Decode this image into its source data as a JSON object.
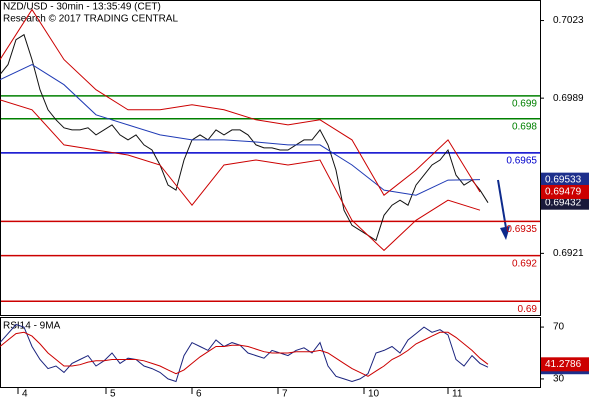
{
  "chart_data": [
    {
      "type": "line",
      "title": "NZD/USD - 30min - 13:35:49 (CET)",
      "subtitle": "Research © 2017 TRADING CENTRAL",
      "xlim": [
        0,
        67.5
      ],
      "xticks": [
        {
          "value": 2.75,
          "label": "4"
        },
        {
          "value": 13.75,
          "label": "5"
        },
        {
          "value": 24.5,
          "label": "6"
        },
        {
          "value": 35.25,
          "label": "7"
        },
        {
          "value": 46,
          "label": "10"
        },
        {
          "value": 56.5,
          "label": "11"
        }
      ],
      "ylim": [
        0.6894,
        0.7032
      ],
      "yticks": [
        0.7023,
        0.6989,
        0.6921
      ],
      "levels": [
        {
          "value": 0.699,
          "color": "#008000"
        },
        {
          "value": 0.698,
          "color": "#008000"
        },
        {
          "value": 0.6965,
          "color": "#0000cc"
        },
        {
          "value": 0.6935,
          "color": "#cc0000"
        },
        {
          "value": 0.692,
          "color": "#cc0000"
        },
        {
          "value": 0.69,
          "color": "#cc0000"
        }
      ],
      "series": [
        {
          "name": "NZD/USD",
          "color": "#111111",
          "box": "#1a1a3a",
          "values": [
            0.69993,
            0.70037,
            0.70146,
            0.70168,
            0.70059,
            0.69927,
            0.69839,
            0.69795,
            0.6976,
            0.69751,
            0.69751,
            0.6976,
            0.69729,
            0.69751,
            0.69773,
            0.69729,
            0.69707,
            0.69729,
            0.69685,
            0.69663,
            0.69597,
            0.69509,
            0.69487,
            0.69619,
            0.69707,
            0.69729,
            0.69707,
            0.69751,
            0.69729,
            0.69751,
            0.69751,
            0.69729,
            0.69685,
            0.69672,
            0.69672,
            0.69663,
            0.69663,
            0.69685,
            0.69707,
            0.69707,
            0.69751,
            0.69685,
            0.69575,
            0.69399,
            0.69333,
            0.69311,
            0.69289,
            0.69267,
            0.69377,
            0.69421,
            0.69443,
            0.69421,
            0.69509,
            0.69553,
            0.69597,
            0.69619,
            0.69663,
            0.69553,
            0.69509,
            0.69531,
            0.69487,
            0.69432
          ]
        },
        {
          "name": "MA",
          "color": "#1f3ab5",
          "box": "#1d2f8c",
          "x": [
            0,
            4,
            8,
            12,
            16,
            20,
            24,
            28,
            32,
            36,
            40,
            44,
            48,
            52,
            56,
            60
          ],
          "values": [
            0.69971,
            0.70037,
            0.69949,
            0.69817,
            0.69773,
            0.69729,
            0.69707,
            0.69707,
            0.69698,
            0.69685,
            0.69685,
            0.69597,
            0.69487,
            0.69465,
            0.69531,
            0.69533
          ]
        },
        {
          "name": "Upper band",
          "color": "#cc0000",
          "box": "#cc0000",
          "x": [
            0,
            4,
            8,
            12,
            16,
            20,
            24,
            28,
            32,
            36,
            40,
            44,
            48,
            52,
            56,
            60
          ],
          "values": [
            0.70059,
            0.70278,
            0.70059,
            0.69927,
            0.69839,
            0.69839,
            0.69861,
            0.69839,
            0.69795,
            0.69773,
            0.69795,
            0.69707,
            0.69465,
            0.69575,
            0.69707,
            0.69479
          ]
        },
        {
          "name": "Lower band",
          "color": "#cc0000",
          "x": [
            0,
            4,
            8,
            12,
            16,
            20,
            24,
            28,
            32,
            36,
            40,
            44,
            48,
            52,
            56,
            60
          ],
          "values": [
            0.69883,
            0.69839,
            0.69685,
            0.69663,
            0.69641,
            0.69597,
            0.69421,
            0.69597,
            0.69619,
            0.69597,
            0.69619,
            0.69355,
            0.69223,
            0.69355,
            0.69443,
            0.69399
          ]
        }
      ]
    },
    {
      "type": "line",
      "title": "RSI14 - 9MA",
      "xlim": [
        0,
        67.5
      ],
      "ylim": [
        23,
        77
      ],
      "yticks": [
        70,
        30
      ],
      "series": [
        {
          "name": "RSI14",
          "color": "#1a237e",
          "box": "#1d2f8c",
          "values": [
            58,
            65,
            72,
            70,
            55,
            45,
            38,
            40,
            35,
            42,
            45,
            48,
            40,
            44,
            50,
            42,
            46,
            45,
            40,
            38,
            35,
            30,
            28,
            48,
            58,
            55,
            52,
            60,
            55,
            58,
            56,
            50,
            48,
            46,
            52,
            50,
            48,
            52,
            54,
            50,
            58,
            40,
            32,
            30,
            28,
            30,
            34,
            50,
            52,
            55,
            50,
            60,
            65,
            70,
            66,
            68,
            64,
            45,
            40,
            48,
            42,
            39.03
          ]
        },
        {
          "name": "9MA",
          "color": "#cc0000",
          "box": "#cc0000",
          "values": [
            55,
            60,
            65,
            66,
            63,
            57,
            50,
            45,
            40,
            40,
            41,
            43,
            44,
            44,
            45,
            45,
            45,
            45,
            44,
            42,
            40,
            37,
            34,
            37,
            42,
            47,
            51,
            55,
            55,
            56,
            56,
            55,
            53,
            51,
            50,
            50,
            50,
            51,
            51,
            51,
            52,
            50,
            46,
            42,
            38,
            35,
            32,
            36,
            40,
            45,
            48,
            52,
            57,
            60,
            63,
            66,
            66,
            62,
            57,
            52,
            46,
            41.2786
          ]
        }
      ]
    }
  ]
}
